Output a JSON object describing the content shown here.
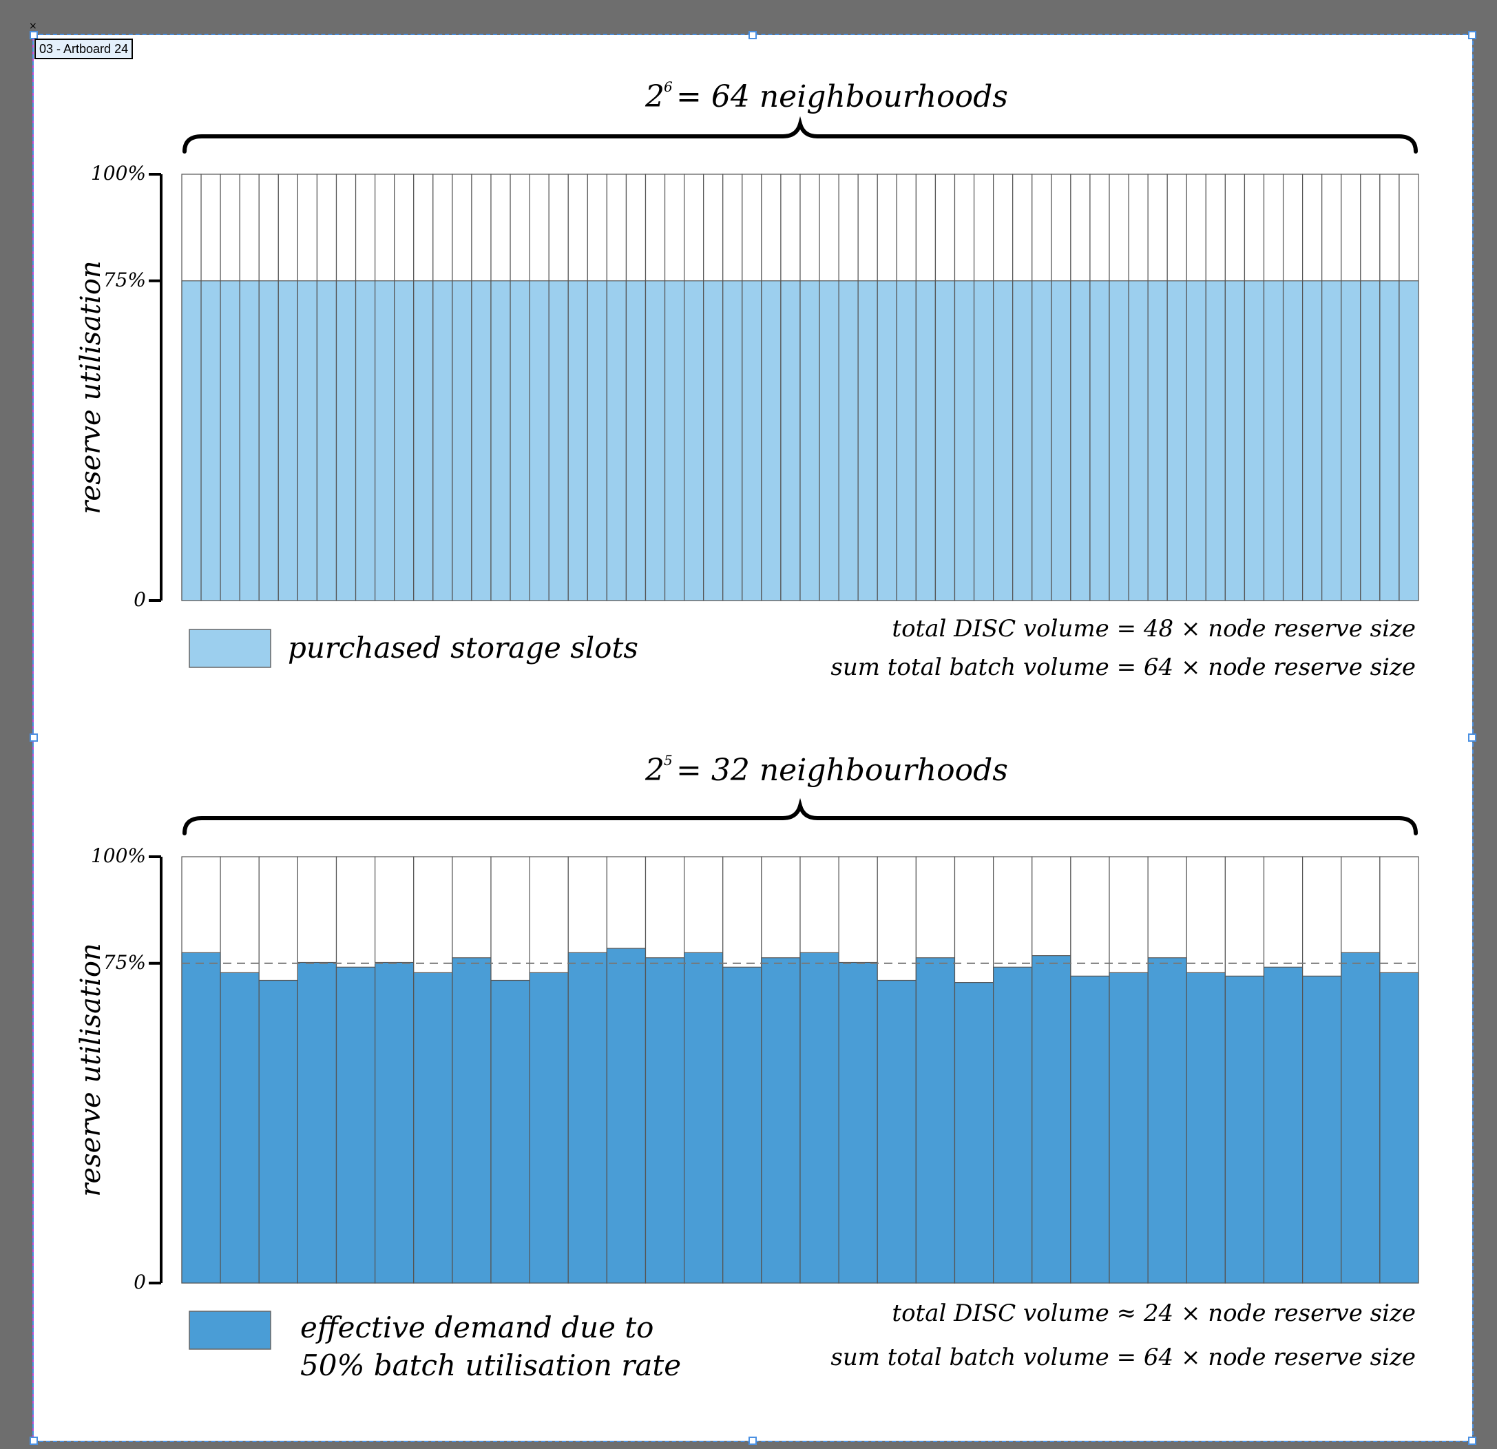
{
  "artboard": {
    "label": "03 - Artboard 24",
    "close_glyph": "×"
  },
  "colors": {
    "light_fill": "#9ccfee",
    "dark_fill": "#4a9dd6",
    "axis": "#000000",
    "bar_border": "#555555",
    "dashed_line": "#777777"
  },
  "chart_data": [
    {
      "type": "bar",
      "title_base": "2",
      "title_exponent": "6",
      "title_rest": "= 64 neighbourhoods",
      "ylabel": "reserve utilisation",
      "ytick_labels": [
        "100%",
        "75%",
        "0"
      ],
      "ytick_values": [
        100,
        75,
        0
      ],
      "ylim": [
        0,
        100
      ],
      "bar_count": 64,
      "values": [
        75,
        75,
        75,
        75,
        75,
        75,
        75,
        75,
        75,
        75,
        75,
        75,
        75,
        75,
        75,
        75,
        75,
        75,
        75,
        75,
        75,
        75,
        75,
        75,
        75,
        75,
        75,
        75,
        75,
        75,
        75,
        75,
        75,
        75,
        75,
        75,
        75,
        75,
        75,
        75,
        75,
        75,
        75,
        75,
        75,
        75,
        75,
        75,
        75,
        75,
        75,
        75,
        75,
        75,
        75,
        75,
        75,
        75,
        75,
        75,
        75,
        75,
        75,
        75
      ],
      "fill_color": "#9ccfee",
      "legend_lines": [
        "purchased storage slots"
      ],
      "note_lines": [
        "total DISC volume = 48 × node reserve size",
        "sum total batch volume = 64 × node reserve size"
      ],
      "reference_line": null
    },
    {
      "type": "bar",
      "title_base": "2",
      "title_exponent": "5",
      "title_rest": "= 32 neighbourhoods",
      "ylabel": "reserve utilisation",
      "ytick_labels": [
        "100%",
        "75%",
        "0"
      ],
      "ytick_values": [
        100,
        75,
        0
      ],
      "ylim": [
        0,
        100
      ],
      "bar_count": 32,
      "values": [
        77.5,
        72.8,
        71.0,
        75.2,
        74.1,
        75.2,
        72.8,
        76.3,
        71.0,
        72.8,
        77.5,
        78.5,
        76.3,
        77.5,
        74.1,
        76.3,
        77.5,
        75.2,
        71.0,
        76.3,
        70.5,
        74.1,
        76.8,
        72.0,
        72.8,
        76.3,
        72.8,
        72.0,
        74.1,
        72.0,
        77.5,
        72.8
      ],
      "fill_color": "#4a9dd6",
      "legend_lines": [
        "effective demand due to",
        "50% batch utilisation rate"
      ],
      "note_lines": [
        "total DISC volume ≈ 24 × node reserve size",
        "sum total batch volume = 64 × node reserve size"
      ],
      "reference_line": 75
    }
  ]
}
